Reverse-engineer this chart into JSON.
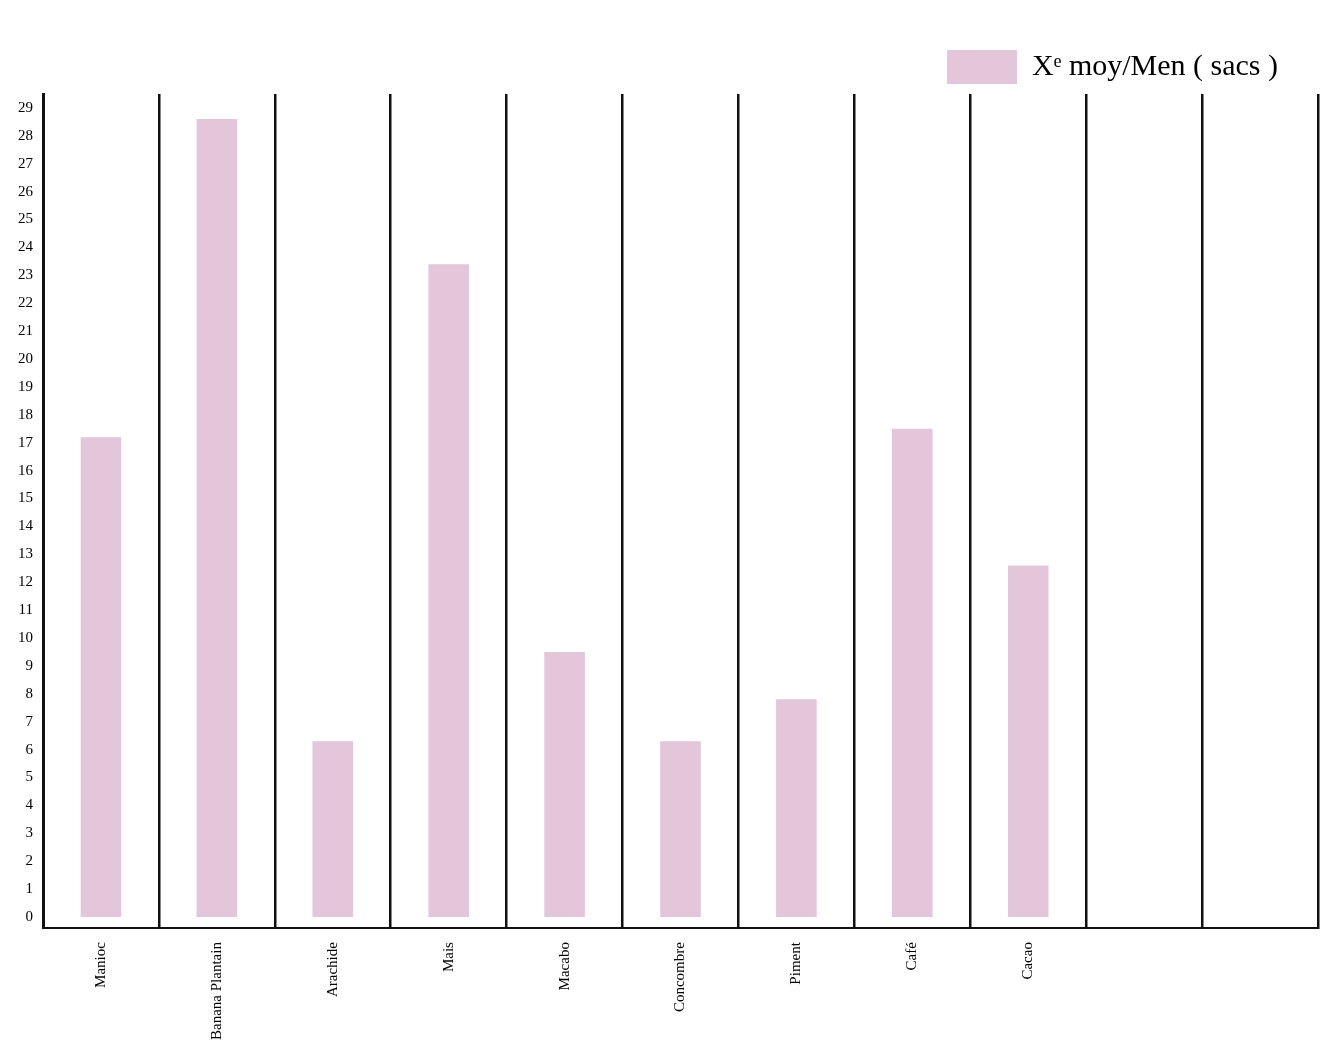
{
  "chart_data": {
    "type": "bar",
    "categories": [
      "Manioc",
      "Banana Plantain",
      "Arachide",
      "Mais",
      "Macabo",
      "Concombre",
      "Piment",
      "Café",
      "Cacao",
      null,
      null
    ],
    "series": [
      {
        "name": "Xᵉ moy/Men ( sacs )",
        "color": "#e3c6da",
        "values": [
          17.2,
          28.6,
          6.3,
          23.4,
          9.5,
          6.3,
          7.8,
          17.5,
          12.6,
          null,
          null
        ]
      }
    ],
    "ylim": [
      -0.4,
      29.5
    ],
    "yticks": [
      0,
      1,
      2,
      3,
      4,
      5,
      6,
      7,
      8,
      9,
      10,
      11,
      12,
      13,
      14,
      15,
      16,
      17,
      18,
      19,
      20,
      21,
      22,
      23,
      24,
      25,
      26,
      27,
      28,
      29
    ],
    "grid": "x",
    "legend": "top right"
  }
}
